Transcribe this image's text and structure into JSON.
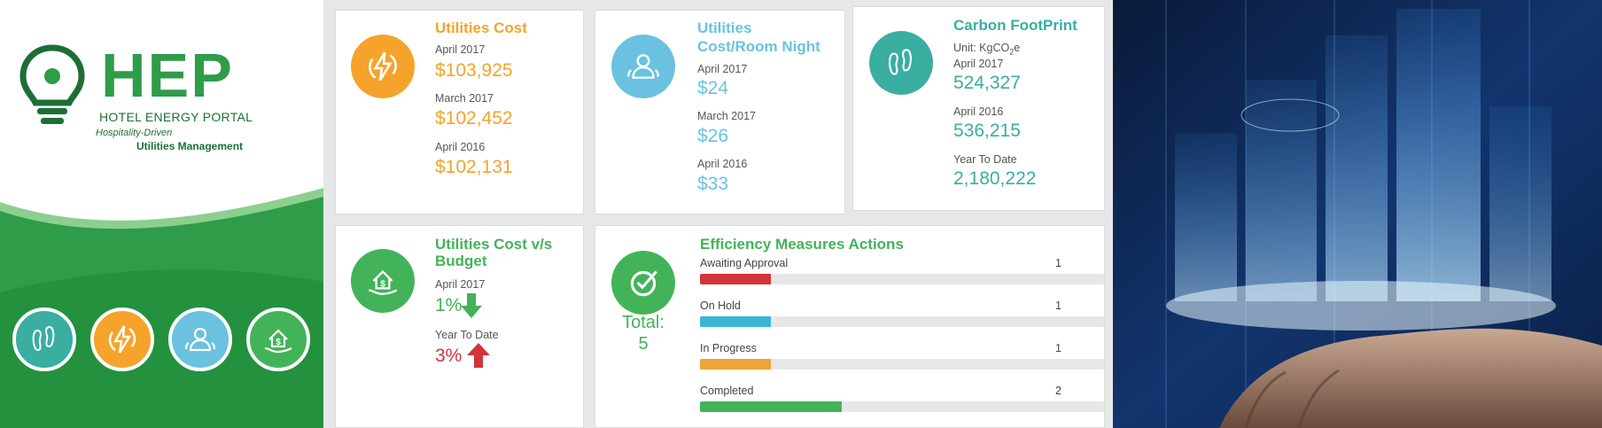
{
  "brand": {
    "logo_text": "HEP",
    "subtitle": "HOTEL ENERGY PORTAL",
    "tagline_1": "Hospitality-Driven",
    "tagline_2": "Utilities Management",
    "colors": {
      "primary": "#2e9c48",
      "dark": "#1d6e36"
    },
    "nav_icons": [
      {
        "name": "footprint-icon",
        "color": "#39aea1"
      },
      {
        "name": "lightning-icon",
        "color": "#f5a32b"
      },
      {
        "name": "users-icon",
        "color": "#6ac2e0"
      },
      {
        "name": "budget-home-icon",
        "color": "#43b359"
      }
    ]
  },
  "utilities_cost": {
    "title": "Utilities Cost",
    "icon": "lightning-icon",
    "color": "#f5a32b",
    "rows": [
      {
        "label": "April 2017",
        "value": "$103,925"
      },
      {
        "label": "March 2017",
        "value": "$102,452"
      },
      {
        "label": "April 2016",
        "value": "$102,131"
      }
    ]
  },
  "room_night": {
    "title_line1": "Utilities",
    "title_line2": "Cost/Room Night",
    "icon": "users-icon",
    "color": "#6ac2e0",
    "rows": [
      {
        "label": "April 2017",
        "value": "$24"
      },
      {
        "label": "March 2017",
        "value": "$26"
      },
      {
        "label": "April 2016",
        "value": "$33"
      }
    ]
  },
  "carbon": {
    "title": "Carbon FootPrint",
    "unit": "Unit: KgCO",
    "unit_sub": "2",
    "unit_suffix": "e",
    "icon": "footprint-icon",
    "color": "#39aea1",
    "rows": [
      {
        "label": "April 2017",
        "value": "524,327"
      },
      {
        "label": "April 2016",
        "value": "536,215"
      },
      {
        "label": "Year To Date",
        "value": "2,180,222"
      }
    ]
  },
  "budget": {
    "title_line1": "Utilities Cost v/s",
    "title_line2": "Budget",
    "icon": "budget-home-icon",
    "color": "#43b359",
    "rows": [
      {
        "label": "April 2017",
        "value": "1%",
        "trend": "down",
        "trend_color": "#43b359"
      },
      {
        "label": "Year To Date",
        "value": "3%",
        "trend": "up",
        "trend_color": "#d2343a"
      }
    ]
  },
  "efficiency": {
    "title": "Efficiency Measures Actions",
    "icon": "check-circle-icon",
    "color": "#43b359",
    "total_label": "Total:",
    "total_value": "5",
    "items": [
      {
        "label": "Awaiting Approval",
        "count": "1",
        "fraction": 0.175,
        "color": "#d2343a"
      },
      {
        "label": "On Hold",
        "count": "1",
        "fraction": 0.175,
        "color": "#3bb4d6"
      },
      {
        "label": "In Progress",
        "count": "1",
        "fraction": 0.175,
        "color": "#f0a33a"
      },
      {
        "label": "Completed",
        "count": "2",
        "fraction": 0.35,
        "color": "#43b359"
      }
    ]
  }
}
